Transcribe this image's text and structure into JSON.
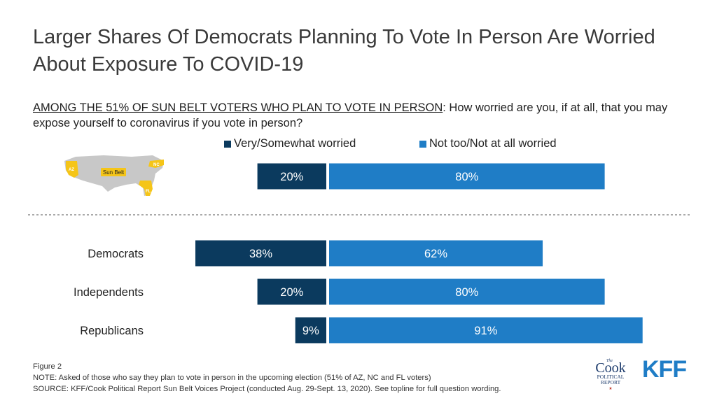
{
  "title": "Larger Shares Of Democrats Planning To Vote In Person Are Worried About Exposure To COVID-19",
  "subtitle_lead": "AMONG THE 51% OF SUN BELT VOTERS WHO PLAN TO VOTE IN PERSON",
  "subtitle_rest": ": How worried are you, if at all, that you may expose yourself to coronavirus if you vote in person?",
  "map": {
    "label": "Sun Belt",
    "states": [
      "AZ",
      "NC",
      "FL"
    ],
    "highlight_color": "#f5c518",
    "base_color": "#c8c8c8"
  },
  "chart_data": {
    "type": "bar",
    "orientation": "horizontal",
    "stacked": "diverging",
    "categories": [
      "",
      "Democrats",
      "Independents",
      "Republicans"
    ],
    "series": [
      {
        "name": "Very/Somewhat worried",
        "color": "#0b3a5e",
        "values": [
          20,
          38,
          20,
          9
        ]
      },
      {
        "name": "Not too/Not at all worried",
        "color": "#1f7dc6",
        "values": [
          80,
          62,
          80,
          91
        ]
      }
    ],
    "value_labels": [
      [
        "20%",
        "38%",
        "20%",
        "9%"
      ],
      [
        "80%",
        "62%",
        "80%",
        "91%"
      ]
    ],
    "legend_position": "top",
    "grid": false,
    "separator_after_first_row": true
  },
  "footer": {
    "figure": "Figure 2",
    "note": "NOTE: Asked of those who say they plan to vote in person in the upcoming election (51% of AZ, NC and FL voters)",
    "source": "SOURCE: KFF/Cook Political Report Sun Belt Voices Project (conducted Aug. 29-Sept. 13, 2020). See topline for full question wording."
  },
  "logos": {
    "cook_the": "The",
    "cook_name": "Cook",
    "cook_line1": "POLITICAL",
    "cook_line2": "REPORT",
    "cook_star": "★",
    "kff": "KFF"
  }
}
